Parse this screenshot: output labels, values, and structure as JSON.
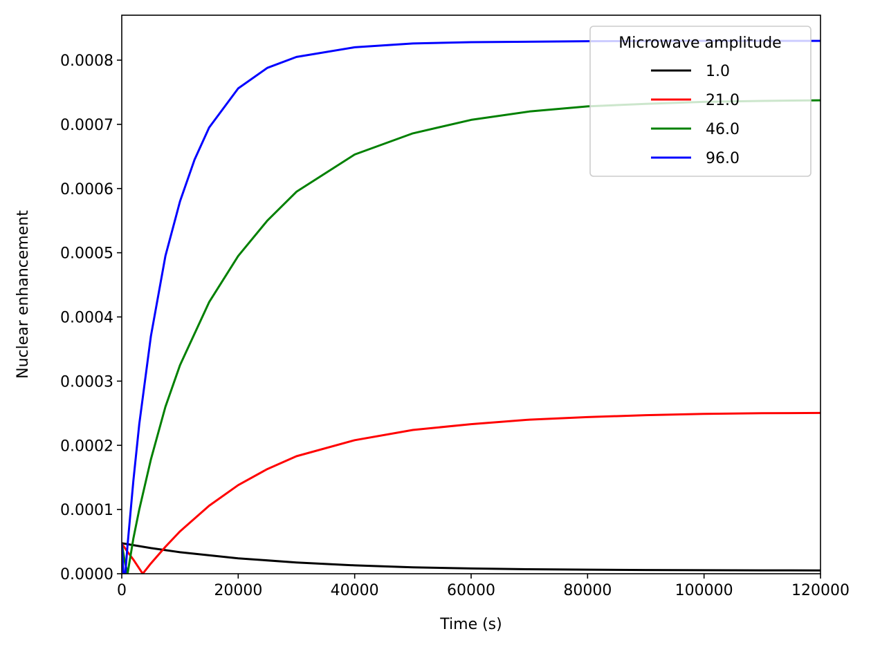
{
  "chart_data": {
    "type": "line",
    "title": "",
    "xlabel": "Time (s)",
    "ylabel": "Nuclear enhancement",
    "xlim": [
      0,
      120000
    ],
    "ylim": [
      0,
      0.00087
    ],
    "xticks": [
      0,
      20000,
      40000,
      60000,
      80000,
      100000,
      120000
    ],
    "xtick_labels": [
      "0",
      "20000",
      "40000",
      "60000",
      "80000",
      "100000",
      "120000"
    ],
    "yticks": [
      0,
      0.0001,
      0.0002,
      0.0003,
      0.0004,
      0.0005,
      0.0006,
      0.0007,
      0.0008
    ],
    "ytick_labels": [
      "0.0000",
      "0.0001",
      "0.0002",
      "0.0003",
      "0.0004",
      "0.0005",
      "0.0006",
      "0.0007",
      "0.0008"
    ],
    "grid": false,
    "legend": {
      "title": "Microwave amplitude",
      "placement": "top-right"
    },
    "series": [
      {
        "name": "1.0",
        "color": "#000000",
        "x": [
          0,
          5000,
          10000,
          20000,
          30000,
          40000,
          50000,
          60000,
          70000,
          80000,
          90000,
          100000,
          110000,
          120000
        ],
        "y": [
          4.75e-05,
          4e-05,
          3.35e-05,
          2.4e-05,
          1.75e-05,
          1.3e-05,
          1e-05,
          8.2e-06,
          7e-06,
          6.3e-06,
          5.8e-06,
          5.5e-06,
          5.3e-06,
          5.2e-06
        ]
      },
      {
        "name": "21.0",
        "color": "#ff0000",
        "x": [
          0,
          1000,
          2000,
          3600,
          5000,
          7500,
          10000,
          15000,
          20000,
          25000,
          30000,
          40000,
          50000,
          60000,
          70000,
          80000,
          90000,
          100000,
          110000,
          120000
        ],
        "y": [
          4.7e-05,
          3.4e-05,
          2.2e-05,
          0.0,
          1.6e-05,
          4.2e-05,
          6.6e-05,
          0.000106,
          0.000138,
          0.000163,
          0.000183,
          0.000208,
          0.000224,
          0.000233,
          0.00024,
          0.000244,
          0.000247,
          0.000249,
          0.00025,
          0.0002505
        ]
      },
      {
        "name": "46.0",
        "color": "#008000",
        "x": [
          0,
          500,
          1000,
          2000,
          3000,
          5000,
          7500,
          10000,
          15000,
          20000,
          25000,
          30000,
          40000,
          50000,
          60000,
          70000,
          80000,
          90000,
          100000,
          110000,
          120000
        ],
        "y": [
          4.7e-05,
          2e-05,
          0.0,
          5.5e-05,
          0.0001,
          0.000178,
          0.00026,
          0.000325,
          0.000423,
          0.000495,
          0.00055,
          0.000595,
          0.000653,
          0.000686,
          0.000707,
          0.00072,
          0.000728,
          0.000732,
          0.000735,
          0.0007365,
          0.0007375
        ]
      },
      {
        "name": "96.0",
        "color": "#0000ff",
        "x": [
          0,
          300,
          600,
          1000,
          2000,
          3000,
          5000,
          7500,
          10000,
          12500,
          15000,
          20000,
          25000,
          30000,
          40000,
          50000,
          60000,
          80000,
          100000,
          120000
        ],
        "y": [
          4.7e-05,
          0.0,
          0.0,
          4.5e-05,
          0.000145,
          0.000233,
          0.00037,
          0.000495,
          0.00058,
          0.000645,
          0.000695,
          0.000756,
          0.000788,
          0.000805,
          0.00082,
          0.000826,
          0.000828,
          0.0008295,
          0.00083,
          0.00083
        ]
      }
    ]
  }
}
